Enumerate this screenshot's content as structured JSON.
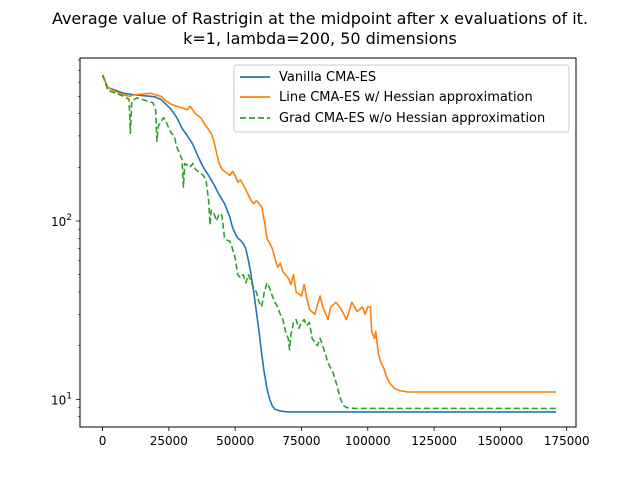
{
  "chart_data": {
    "type": "line",
    "title_lines": [
      "Average value of Rastrigin at the midpoint after x evaluations of it.",
      "k=1, lambda=200, 50 dimensions"
    ],
    "xlabel": "",
    "ylabel": "",
    "y_scale": "log",
    "xlim": [
      -8500,
      178500
    ],
    "ylim": [
      7.0,
      820
    ],
    "x_ticks": [
      0,
      25000,
      50000,
      75000,
      100000,
      125000,
      150000,
      175000
    ],
    "x_tick_labels": [
      "0",
      "25000",
      "50000",
      "75000",
      "100000",
      "125000",
      "150000",
      "175000"
    ],
    "y_major_ticks": [
      10,
      100
    ],
    "y_tick_labels": [
      "10^1",
      "10^2"
    ],
    "y_tick_text": [
      {
        "base": "10",
        "exp": "1"
      },
      {
        "base": "10",
        "exp": "2"
      }
    ],
    "grid": false,
    "legend_position": "upper right",
    "series": [
      {
        "name": "Vanilla CMA-ES",
        "color": "#1f77b4",
        "dash": "solid",
        "points": [
          [
            0,
            660
          ],
          [
            2000,
            560
          ],
          [
            5000,
            540
          ],
          [
            8000,
            520
          ],
          [
            12000,
            510
          ],
          [
            15000,
            505
          ],
          [
            18000,
            500
          ],
          [
            20000,
            495
          ],
          [
            22000,
            480
          ],
          [
            24000,
            450
          ],
          [
            26000,
            420
          ],
          [
            28000,
            380
          ],
          [
            30000,
            330
          ],
          [
            32000,
            300
          ],
          [
            34000,
            270
          ],
          [
            36000,
            230
          ],
          [
            38000,
            200
          ],
          [
            40000,
            180
          ],
          [
            42000,
            160
          ],
          [
            44000,
            140
          ],
          [
            46000,
            125
          ],
          [
            48000,
            105
          ],
          [
            49000,
            92
          ],
          [
            50000,
            85
          ],
          [
            51000,
            80
          ],
          [
            52000,
            78
          ],
          [
            53000,
            75
          ],
          [
            54000,
            70
          ],
          [
            55000,
            60
          ],
          [
            56000,
            50
          ],
          [
            57000,
            40
          ],
          [
            58000,
            31
          ],
          [
            59000,
            24
          ],
          [
            60000,
            18
          ],
          [
            61000,
            14
          ],
          [
            62000,
            11.5
          ],
          [
            63000,
            10
          ],
          [
            64000,
            9.2
          ],
          [
            65000,
            8.8
          ],
          [
            67000,
            8.6
          ],
          [
            70000,
            8.5
          ],
          [
            80000,
            8.5
          ],
          [
            100000,
            8.5
          ],
          [
            130000,
            8.5
          ],
          [
            171000,
            8.5
          ]
        ]
      },
      {
        "name": "Line CMA-ES w/ Hessian approximation",
        "color": "#ff7f0e",
        "dash": "solid",
        "points": [
          [
            0,
            660
          ],
          [
            2000,
            560
          ],
          [
            5000,
            530
          ],
          [
            8000,
            510
          ],
          [
            10000,
            500
          ],
          [
            12000,
            510
          ],
          [
            15000,
            515
          ],
          [
            18000,
            520
          ],
          [
            20000,
            510
          ],
          [
            22000,
            500
          ],
          [
            24000,
            470
          ],
          [
            26000,
            450
          ],
          [
            28000,
            440
          ],
          [
            30000,
            430
          ],
          [
            32000,
            420
          ],
          [
            33000,
            440
          ],
          [
            35000,
            400
          ],
          [
            37000,
            380
          ],
          [
            39000,
            340
          ],
          [
            41000,
            310
          ],
          [
            42000,
            280
          ],
          [
            43000,
            240
          ],
          [
            44000,
            210
          ],
          [
            45000,
            195
          ],
          [
            46000,
            190
          ],
          [
            47000,
            185
          ],
          [
            48000,
            180
          ],
          [
            49000,
            190
          ],
          [
            50000,
            180
          ],
          [
            51000,
            165
          ],
          [
            52000,
            170
          ],
          [
            53000,
            160
          ],
          [
            54000,
            150
          ],
          [
            55000,
            140
          ],
          [
            56000,
            130
          ],
          [
            57000,
            125
          ],
          [
            58000,
            130
          ],
          [
            59000,
            125
          ],
          [
            60000,
            120
          ],
          [
            61000,
            100
          ],
          [
            62000,
            80
          ],
          [
            63000,
            75
          ],
          [
            64000,
            70
          ],
          [
            65000,
            62
          ],
          [
            66000,
            55
          ],
          [
            67000,
            58
          ],
          [
            68000,
            52
          ],
          [
            70000,
            48
          ],
          [
            71000,
            44
          ],
          [
            72000,
            50
          ],
          [
            73000,
            40
          ],
          [
            75000,
            38
          ],
          [
            76000,
            44
          ],
          [
            77000,
            37
          ],
          [
            78000,
            32
          ],
          [
            80000,
            30
          ],
          [
            82000,
            38
          ],
          [
            83000,
            33
          ],
          [
            85000,
            28
          ],
          [
            86000,
            33
          ],
          [
            88000,
            35
          ],
          [
            90000,
            32
          ],
          [
            92000,
            28
          ],
          [
            94000,
            35
          ],
          [
            96000,
            31
          ],
          [
            98000,
            33
          ],
          [
            99000,
            30
          ],
          [
            100000,
            33
          ],
          [
            101000,
            33
          ],
          [
            101500,
            24
          ],
          [
            102500,
            22
          ],
          [
            103000,
            24
          ],
          [
            104000,
            18
          ],
          [
            105000,
            16
          ],
          [
            106000,
            15
          ],
          [
            107000,
            13.5
          ],
          [
            108000,
            12.5
          ],
          [
            110000,
            11.5
          ],
          [
            112000,
            11.2
          ],
          [
            115000,
            11
          ],
          [
            130000,
            11
          ],
          [
            171000,
            11
          ]
        ]
      },
      {
        "name": "Grad CMA-ES w/o Hessian approximation",
        "color": "#2ca02c",
        "dash": "dashed",
        "points": [
          [
            0,
            660
          ],
          [
            2000,
            540
          ],
          [
            5000,
            520
          ],
          [
            8000,
            500
          ],
          [
            10000,
            480
          ],
          [
            10500,
            310
          ],
          [
            11000,
            470
          ],
          [
            13000,
            490
          ],
          [
            15000,
            480
          ],
          [
            17000,
            470
          ],
          [
            19000,
            460
          ],
          [
            20000,
            420
          ],
          [
            20500,
            280
          ],
          [
            21000,
            340
          ],
          [
            22000,
            360
          ],
          [
            23000,
            380
          ],
          [
            24000,
            360
          ],
          [
            25000,
            330
          ],
          [
            26000,
            310
          ],
          [
            27000,
            300
          ],
          [
            28000,
            260
          ],
          [
            29000,
            240
          ],
          [
            30000,
            220
          ],
          [
            30500,
            155
          ],
          [
            31000,
            210
          ],
          [
            32000,
            205
          ],
          [
            33000,
            200
          ],
          [
            34000,
            210
          ],
          [
            35000,
            195
          ],
          [
            36000,
            190
          ],
          [
            37000,
            185
          ],
          [
            38000,
            180
          ],
          [
            39000,
            170
          ],
          [
            40000,
            130
          ],
          [
            40500,
            95
          ],
          [
            41000,
            115
          ],
          [
            42000,
            110
          ],
          [
            43000,
            100
          ],
          [
            44000,
            110
          ],
          [
            45000,
            108
          ],
          [
            46000,
            80
          ],
          [
            47000,
            78
          ],
          [
            48000,
            77
          ],
          [
            49000,
            70
          ],
          [
            50000,
            62
          ],
          [
            51000,
            50
          ],
          [
            52000,
            48
          ],
          [
            53000,
            50
          ],
          [
            54000,
            45
          ],
          [
            55000,
            50
          ],
          [
            56000,
            46
          ],
          [
            57000,
            42
          ],
          [
            58000,
            40
          ],
          [
            59000,
            35
          ],
          [
            60000,
            33
          ],
          [
            61000,
            40
          ],
          [
            62000,
            45
          ],
          [
            63000,
            42
          ],
          [
            64000,
            38
          ],
          [
            65000,
            35
          ],
          [
            66000,
            33
          ],
          [
            67000,
            30
          ],
          [
            68000,
            28
          ],
          [
            69000,
            24
          ],
          [
            70000,
            22
          ],
          [
            70500,
            19
          ],
          [
            71000,
            23
          ],
          [
            72000,
            27
          ],
          [
            73000,
            28
          ],
          [
            74000,
            25
          ],
          [
            75000,
            27
          ],
          [
            76000,
            28
          ],
          [
            77000,
            26
          ],
          [
            78000,
            27
          ],
          [
            79000,
            22
          ],
          [
            80000,
            21
          ],
          [
            81000,
            20
          ],
          [
            82000,
            22
          ],
          [
            83000,
            20
          ],
          [
            84000,
            18
          ],
          [
            85000,
            16
          ],
          [
            86000,
            15
          ],
          [
            87000,
            14
          ],
          [
            88000,
            12.5
          ],
          [
            89000,
            11
          ],
          [
            90000,
            9.8
          ],
          [
            91000,
            9.2
          ],
          [
            92000,
            9.0
          ],
          [
            95000,
            8.9
          ],
          [
            110000,
            8.9
          ],
          [
            130000,
            8.9
          ],
          [
            171000,
            8.9
          ]
        ]
      }
    ]
  }
}
